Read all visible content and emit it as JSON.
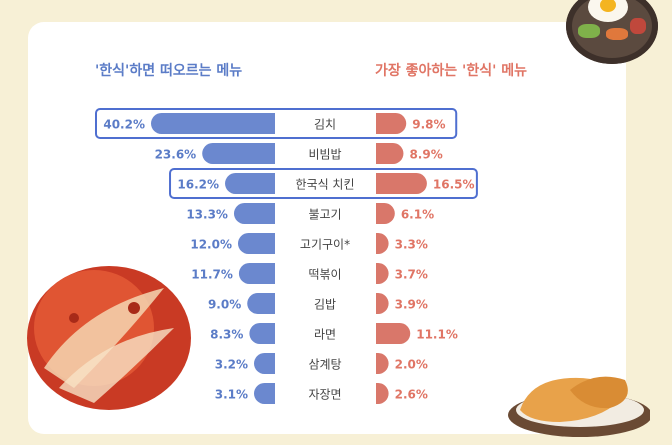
{
  "titles": {
    "left": "'한식'하면 떠오르는 메뉴",
    "right": "가장 좋아하는 '한식' 메뉴"
  },
  "colors": {
    "left_bar": "#6b88cf",
    "right_bar": "#d9776a",
    "left_text": "#5b7cc7",
    "right_text": "#e07565",
    "highlight_box": "#4f6fd0",
    "category_text": "#444444"
  },
  "chart_data": {
    "type": "bar",
    "orientation": "horizontal-butterfly",
    "categories": [
      "김치",
      "비빔밥",
      "한국식 치킨",
      "불고기",
      "고기구이*",
      "떡볶이",
      "김밥",
      "라면",
      "삼계탕",
      "자장면"
    ],
    "series": [
      {
        "name": "'한식'하면 떠오르는 메뉴",
        "values": [
          40.2,
          23.6,
          16.2,
          13.3,
          12.0,
          11.7,
          9.0,
          8.3,
          3.2,
          3.1
        ],
        "labels": [
          "40.2%",
          "23.6%",
          "16.2%",
          "13.3%",
          "12.0%",
          "11.7%",
          "9.0%",
          "8.3%",
          "3.2%",
          "3.1%"
        ]
      },
      {
        "name": "가장 좋아하는 '한식' 메뉴",
        "values": [
          9.8,
          8.9,
          16.5,
          6.1,
          3.3,
          3.7,
          3.9,
          11.1,
          2.0,
          2.6
        ],
        "labels": [
          "9.8%",
          "8.9%",
          "16.5%",
          "6.1%",
          "3.3%",
          "3.7%",
          "3.9%",
          "11.1%",
          "2.0%",
          "2.6%"
        ]
      }
    ],
    "highlighted_categories": [
      "김치",
      "한국식 치킨"
    ],
    "xlim": [
      0,
      40.2
    ],
    "grid": false,
    "legend": "none"
  }
}
